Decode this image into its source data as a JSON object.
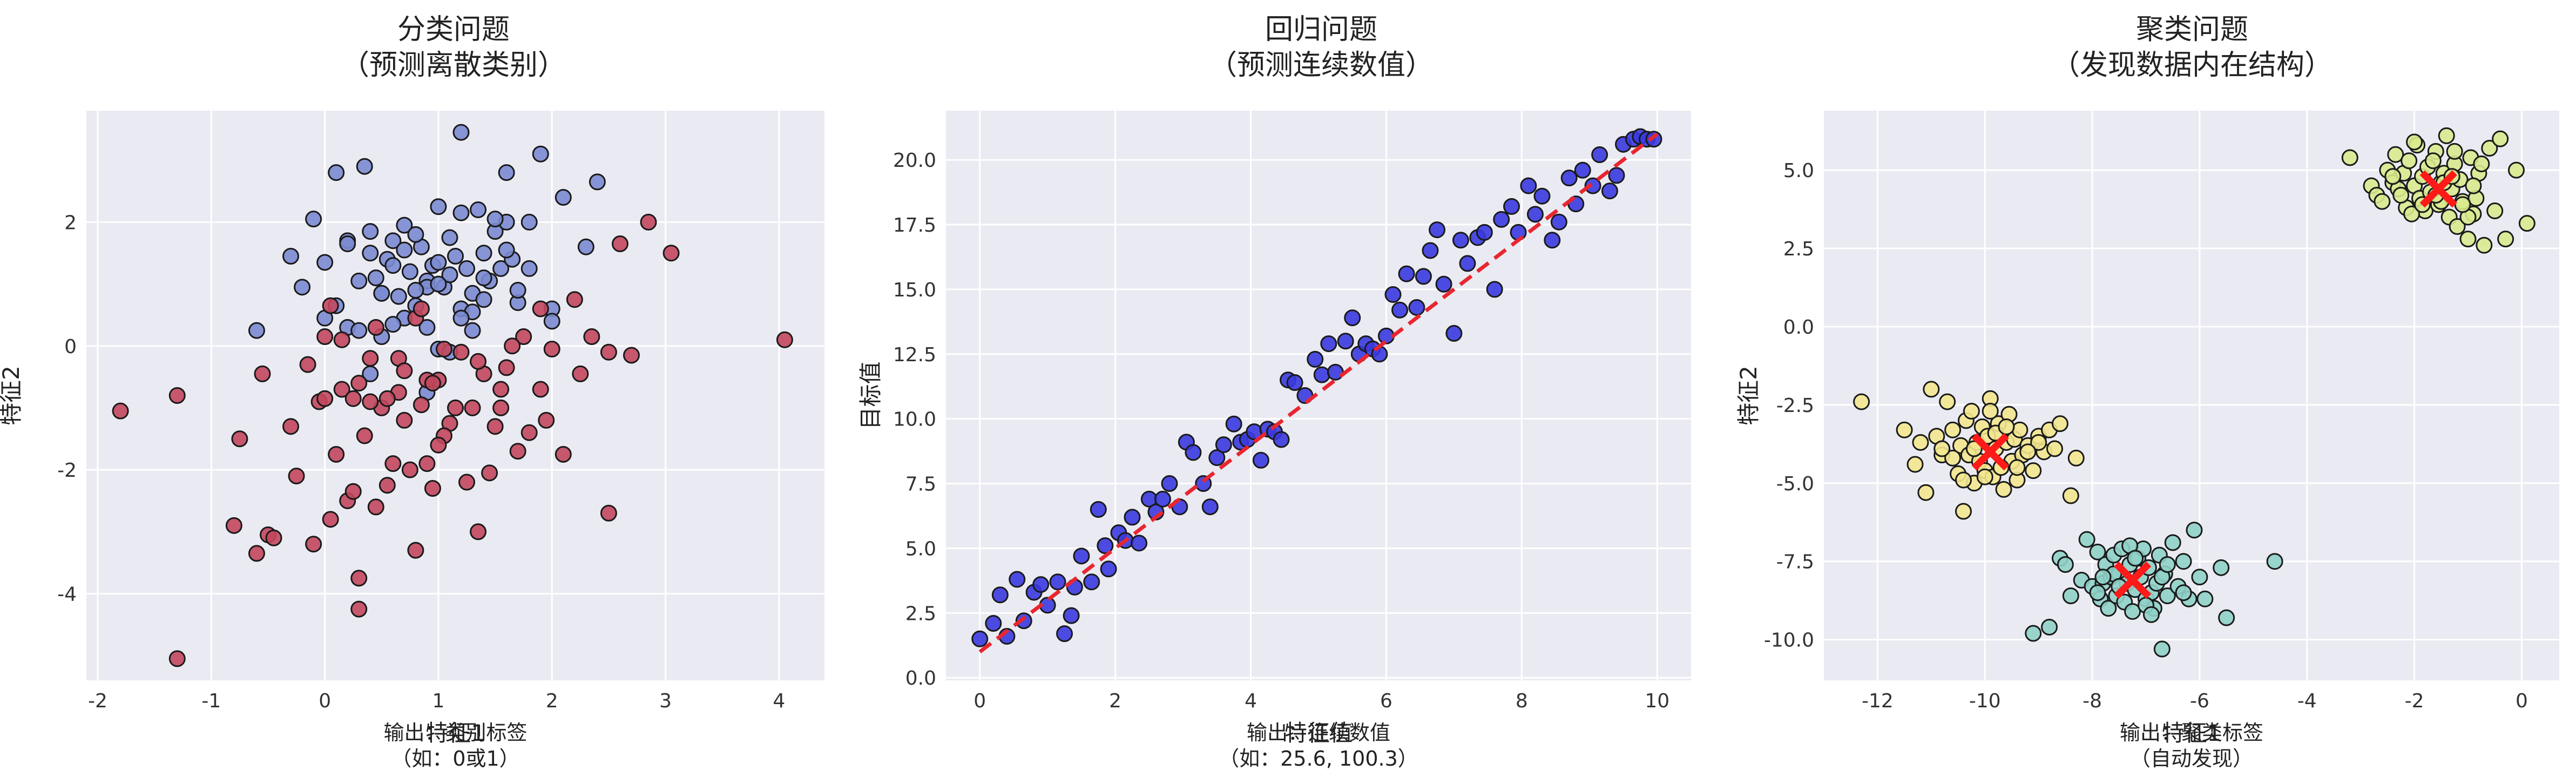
{
  "colors": {
    "panel_bg": "#eaeaf2",
    "grid": "#ffffff",
    "class_0": "#7b8bd1",
    "class_1": "#c2475d",
    "regression_points": "#3a3ae0",
    "regression_line": "#e8262f",
    "cluster_1": "#d8ea8e",
    "cluster_2": "#f3e78e",
    "cluster_3": "#8fd2c8",
    "centroid": "#ff1a1a"
  },
  "chart_data": [
    {
      "type": "scatter",
      "title_line1": "分类问题",
      "title_line2": "（预测离散类别）",
      "xlabel": "特征1",
      "ylabel": "特征2",
      "note_line1": "输出：类别标签",
      "note_line2": "（如：0或1）",
      "xlim": [
        -2.1,
        4.4
      ],
      "ylim": [
        -5.4,
        3.8
      ],
      "xticks": [
        -2,
        -1,
        0,
        1,
        2,
        3,
        4
      ],
      "yticks": [
        -4,
        -2,
        0,
        2
      ],
      "series": [
        {
          "color_key": "class_0",
          "x": [
            -0.6,
            -0.1,
            0.0,
            0.1,
            0.2,
            0.3,
            0.35,
            0.4,
            0.45,
            0.5,
            0.55,
            0.6,
            0.65,
            0.7,
            0.75,
            0.8,
            0.85,
            0.9,
            0.95,
            1.0,
            1.05,
            1.1,
            1.15,
            1.2,
            1.25,
            1.3,
            1.35,
            1.4,
            1.45,
            1.5,
            1.55,
            1.6,
            1.65,
            1.7,
            1.8,
            1.9,
            2.0,
            2.1,
            2.3,
            2.4,
            0.1,
            0.3,
            0.5,
            0.7,
            0.9,
            1.0,
            1.2,
            1.4,
            1.6,
            1.8,
            -0.3,
            -0.2,
            0.0,
            0.2,
            0.4,
            0.6,
            0.8,
            1.0,
            1.2,
            1.4,
            1.6,
            0.4,
            0.7,
            0.9,
            1.1,
            1.3,
            0.5,
            0.8,
            1.0,
            1.5,
            0.6,
            1.1,
            1.2,
            0.9,
            0.2,
            1.7,
            1.3,
            2.0
          ],
          "y": [
            0.25,
            2.05,
            1.35,
            2.8,
            0.3,
            1.05,
            2.9,
            1.85,
            1.1,
            0.85,
            1.4,
            1.7,
            0.8,
            1.55,
            1.2,
            0.65,
            1.6,
            1.05,
            1.3,
            2.25,
            0.95,
            1.75,
            1.45,
            3.45,
            1.25,
            0.85,
            2.2,
            1.5,
            1.05,
            1.85,
            1.25,
            2.0,
            1.4,
            0.7,
            2.0,
            3.1,
            0.6,
            2.4,
            1.6,
            2.65,
            0.65,
            0.25,
            0.15,
            0.45,
            0.95,
            1.35,
            0.6,
            1.1,
            2.8,
            1.25,
            1.45,
            0.95,
            0.45,
            1.7,
            -0.45,
            0.35,
            0.9,
            -0.05,
            2.15,
            0.75,
            1.55,
            1.5,
            1.95,
            0.3,
            1.15,
            0.55,
            0.85,
            1.8,
            1.0,
            2.05,
            1.3,
            -0.1,
            0.45,
            -0.75,
            1.65,
            0.9,
            0.25,
            0.4
          ]
        },
        {
          "color_key": "class_1",
          "x": [
            -1.8,
            -1.3,
            -1.3,
            -0.8,
            -0.75,
            -0.6,
            -0.55,
            -0.5,
            -0.45,
            -0.3,
            -0.25,
            -0.15,
            -0.05,
            0.0,
            0.05,
            0.1,
            0.15,
            0.2,
            0.25,
            0.3,
            0.3,
            0.35,
            0.4,
            0.45,
            0.5,
            0.55,
            0.6,
            0.65,
            0.7,
            0.75,
            0.8,
            0.85,
            0.9,
            0.95,
            1.0,
            1.05,
            1.1,
            1.2,
            1.3,
            1.35,
            1.4,
            1.45,
            1.5,
            1.55,
            1.6,
            1.7,
            1.75,
            1.8,
            1.9,
            1.95,
            2.0,
            2.1,
            2.2,
            2.25,
            2.35,
            2.5,
            2.6,
            2.7,
            2.85,
            3.05,
            4.05,
            0.05,
            0.3,
            0.65,
            0.9,
            1.15,
            1.35,
            0.0,
            0.55,
            0.95,
            1.25,
            1.65,
            0.25,
            0.8,
            1.05,
            1.55,
            0.45,
            0.7,
            1.9,
            2.5,
            0.15,
            1.0,
            -0.1,
            0.4,
            0.85
          ],
          "y": [
            -1.05,
            -0.8,
            -5.05,
            -2.9,
            -1.5,
            -3.35,
            -0.45,
            -3.05,
            -3.1,
            -1.3,
            -2.1,
            -0.3,
            -0.9,
            -0.85,
            -2.8,
            -1.75,
            -0.7,
            -2.5,
            -2.35,
            -3.75,
            -4.25,
            -1.45,
            -0.2,
            -2.6,
            -1.0,
            -2.25,
            -1.9,
            -0.75,
            -1.2,
            -2.0,
            -3.3,
            -0.95,
            -1.9,
            -2.3,
            -0.55,
            -0.05,
            -1.25,
            -0.1,
            -1.0,
            -3.0,
            -0.45,
            -2.05,
            -1.3,
            -0.7,
            -0.35,
            -1.7,
            0.15,
            -1.4,
            -0.7,
            -1.2,
            -0.05,
            -1.75,
            0.75,
            -0.45,
            0.15,
            -0.1,
            1.65,
            -0.15,
            2.0,
            1.5,
            0.1,
            0.65,
            -0.6,
            -0.2,
            -0.55,
            -1.0,
            -0.25,
            0.15,
            -0.85,
            -0.6,
            -2.2,
            0.0,
            -0.85,
            0.45,
            -1.45,
            -1.0,
            0.3,
            -0.4,
            0.6,
            -2.7,
            0.1,
            -1.6,
            -3.2,
            -0.9,
            0.6
          ]
        }
      ]
    },
    {
      "type": "scatter",
      "title_line1": "回归问题",
      "title_line2": "（预测连续数值）",
      "xlabel": "特征值",
      "ylabel": "目标值",
      "note_line1": "输出：连续数值",
      "note_line2": "（如：25.6, 100.3）",
      "xlim": [
        -0.5,
        10.5
      ],
      "ylim": [
        -0.1,
        21.9
      ],
      "xticks": [
        0,
        2,
        4,
        6,
        8,
        10
      ],
      "yticks": [
        0.0,
        2.5,
        5.0,
        7.5,
        10.0,
        12.5,
        15.0,
        17.5,
        20.0
      ],
      "yticklabels": [
        "0.0",
        "2.5",
        "5.0",
        "7.5",
        "10.0",
        "12.5",
        "15.0",
        "17.5",
        "20.0"
      ],
      "series": [
        {
          "color_key": "regression_points",
          "x": [
            0.0,
            0.2,
            0.3,
            0.4,
            0.55,
            0.65,
            0.8,
            0.9,
            1.0,
            1.15,
            1.25,
            1.35,
            1.4,
            1.5,
            1.65,
            1.75,
            1.85,
            1.9,
            2.05,
            2.15,
            2.25,
            2.35,
            2.5,
            2.6,
            2.7,
            2.8,
            2.95,
            3.05,
            3.15,
            3.3,
            3.4,
            3.5,
            3.6,
            3.75,
            3.85,
            3.95,
            4.05,
            4.15,
            4.25,
            4.35,
            4.45,
            4.55,
            4.65,
            4.8,
            4.95,
            5.05,
            5.15,
            5.25,
            5.4,
            5.5,
            5.6,
            5.7,
            5.8,
            5.9,
            6.0,
            6.1,
            6.2,
            6.3,
            6.45,
            6.55,
            6.65,
            6.75,
            6.85,
            7.0,
            7.1,
            7.2,
            7.35,
            7.45,
            7.6,
            7.7,
            7.85,
            7.95,
            8.1,
            8.2,
            8.3,
            8.45,
            8.55,
            8.7,
            8.8,
            8.9,
            9.05,
            9.15,
            9.3,
            9.4,
            9.5,
            9.65,
            9.75,
            9.85,
            9.95
          ],
          "y": [
            1.5,
            2.1,
            3.2,
            1.6,
            3.8,
            2.2,
            3.3,
            3.6,
            2.8,
            3.7,
            1.7,
            2.4,
            3.5,
            4.7,
            3.7,
            6.5,
            5.1,
            4.2,
            5.6,
            5.3,
            6.2,
            5.2,
            6.9,
            6.4,
            6.9,
            7.5,
            6.6,
            9.1,
            8.7,
            7.5,
            6.6,
            8.5,
            9.0,
            9.8,
            9.1,
            9.2,
            9.5,
            8.4,
            9.6,
            9.5,
            9.2,
            11.5,
            11.4,
            10.9,
            12.3,
            11.7,
            12.9,
            11.8,
            13.0,
            13.9,
            12.5,
            12.9,
            12.7,
            12.5,
            13.2,
            14.8,
            14.2,
            15.6,
            14.3,
            15.5,
            16.5,
            17.3,
            15.2,
            13.3,
            16.9,
            16.0,
            17.0,
            17.2,
            15.0,
            17.7,
            18.2,
            17.2,
            19.0,
            17.9,
            18.6,
            16.9,
            17.6,
            19.3,
            18.3,
            19.6,
            19.0,
            20.2,
            18.8,
            19.4,
            20.6,
            20.8,
            20.9,
            20.8,
            20.8
          ]
        }
      ],
      "line": {
        "color_key": "regression_line",
        "x": [
          0,
          10
        ],
        "y": [
          1.0,
          21.0
        ]
      }
    },
    {
      "type": "scatter",
      "title_line1": "聚类问题",
      "title_line2": "（发现数据内在结构）",
      "xlabel": "特征1",
      "ylabel": "特征2",
      "note_line1": "输出：聚类标签",
      "note_line2": "（自动发现）",
      "xlim": [
        -13.0,
        0.7
      ],
      "ylim": [
        -11.3,
        6.9
      ],
      "xticks": [
        -12,
        -10,
        -8,
        -6,
        -4,
        -2,
        0
      ],
      "yticks": [
        -10.0,
        -7.5,
        -5.0,
        -2.5,
        0.0,
        2.5,
        5.0
      ],
      "yticklabels": [
        "-10.0",
        "-7.5",
        "-5.0",
        "-2.5",
        "0.0",
        "2.5",
        "5.0"
      ],
      "series": [
        {
          "color_key": "cluster_1",
          "x": [
            -3.2,
            -2.8,
            -2.7,
            -2.6,
            -2.5,
            -2.4,
            -2.35,
            -2.3,
            -2.2,
            -2.15,
            -2.1,
            -2.0,
            -1.95,
            -1.9,
            -1.85,
            -1.8,
            -1.75,
            -1.7,
            -1.6,
            -1.55,
            -1.5,
            -1.45,
            -1.4,
            -1.35,
            -1.3,
            -1.25,
            -1.2,
            -1.15,
            -1.1,
            -1.0,
            -0.95,
            -0.9,
            -0.85,
            -0.8,
            -0.7,
            -0.6,
            -0.5,
            -0.4,
            -0.3,
            -0.1,
            0.1,
            -2.05,
            -1.65,
            -1.5,
            -1.25,
            -1.0,
            -2.25,
            -1.85,
            -0.75,
            -1.45,
            -2.0,
            -1.6,
            -1.3,
            -1.1,
            -2.4,
            -0.9
          ],
          "y": [
            5.4,
            4.5,
            4.2,
            4.0,
            5.0,
            4.6,
            5.5,
            4.4,
            4.9,
            3.8,
            5.3,
            4.5,
            5.8,
            4.1,
            4.8,
            3.7,
            5.1,
            4.3,
            5.6,
            3.9,
            4.6,
            4.9,
            6.1,
            3.5,
            4.4,
            5.2,
            3.2,
            4.7,
            4.0,
            2.8,
            5.4,
            3.6,
            4.1,
            4.9,
            2.6,
            5.7,
            3.7,
            6.0,
            2.8,
            5.0,
            3.3,
            3.6,
            5.3,
            4.0,
            5.6,
            3.5,
            4.2,
            3.9,
            5.2,
            4.6,
            5.9,
            4.2,
            4.8,
            3.9,
            4.8,
            4.5
          ]
        },
        {
          "color_key": "cluster_2",
          "x": [
            -12.3,
            -11.5,
            -11.3,
            -11.1,
            -11.0,
            -10.9,
            -10.8,
            -10.7,
            -10.6,
            -10.5,
            -10.45,
            -10.4,
            -10.35,
            -10.3,
            -10.25,
            -10.2,
            -10.15,
            -10.1,
            -10.05,
            -10.0,
            -9.95,
            -9.9,
            -9.85,
            -9.8,
            -9.75,
            -9.7,
            -9.65,
            -9.6,
            -9.55,
            -9.5,
            -9.45,
            -9.4,
            -9.35,
            -9.3,
            -9.2,
            -9.1,
            -9.0,
            -8.9,
            -8.8,
            -8.7,
            -8.6,
            -8.4,
            -8.3,
            -10.6,
            -10.2,
            -9.8,
            -9.4,
            -9.0,
            -10.8,
            -10.4,
            -9.9,
            -9.6,
            -9.2,
            -10.0,
            -11.2,
            -9.7
          ],
          "y": [
            -2.4,
            -3.3,
            -4.4,
            -5.3,
            -2.0,
            -3.5,
            -4.1,
            -2.4,
            -3.3,
            -4.7,
            -3.8,
            -5.9,
            -3.0,
            -4.1,
            -2.7,
            -5.0,
            -3.7,
            -4.3,
            -3.2,
            -4.6,
            -3.5,
            -2.3,
            -4.8,
            -3.9,
            -3.1,
            -4.5,
            -5.2,
            -3.7,
            -2.8,
            -4.3,
            -3.6,
            -4.9,
            -3.3,
            -4.1,
            -3.8,
            -4.6,
            -3.5,
            -4.0,
            -3.3,
            -3.9,
            -3.1,
            -5.4,
            -4.2,
            -4.2,
            -3.9,
            -3.4,
            -4.5,
            -3.7,
            -3.9,
            -4.9,
            -2.7,
            -3.2,
            -4.0,
            -4.8,
            -3.7,
            -4.5
          ]
        },
        {
          "color_key": "cluster_3",
          "x": [
            -9.1,
            -8.8,
            -8.6,
            -8.5,
            -8.4,
            -8.2,
            -8.1,
            -8.0,
            -7.9,
            -7.85,
            -7.8,
            -7.75,
            -7.7,
            -7.65,
            -7.6,
            -7.55,
            -7.5,
            -7.45,
            -7.4,
            -7.35,
            -7.3,
            -7.25,
            -7.2,
            -7.15,
            -7.1,
            -7.05,
            -7.0,
            -6.95,
            -6.9,
            -6.85,
            -6.8,
            -6.75,
            -6.7,
            -6.65,
            -6.6,
            -6.5,
            -6.4,
            -6.3,
            -6.2,
            -6.0,
            -5.9,
            -5.6,
            -5.5,
            -4.6,
            -7.9,
            -7.6,
            -7.3,
            -7.0,
            -6.7,
            -7.5,
            -7.2,
            -6.9,
            -6.6,
            -7.8,
            -6.3,
            -6.1
          ],
          "y": [
            -9.8,
            -9.6,
            -7.4,
            -7.6,
            -8.6,
            -8.1,
            -6.8,
            -8.3,
            -7.2,
            -8.7,
            -8.2,
            -7.6,
            -9.0,
            -8.0,
            -7.3,
            -8.6,
            -7.9,
            -7.1,
            -8.8,
            -8.2,
            -7.6,
            -9.1,
            -8.4,
            -7.4,
            -8.0,
            -7.1,
            -8.7,
            -7.7,
            -8.5,
            -9.0,
            -8.2,
            -7.3,
            -10.3,
            -7.9,
            -8.6,
            -6.9,
            -8.3,
            -7.5,
            -8.7,
            -8.0,
            -8.7,
            -7.7,
            -9.3,
            -7.5,
            -8.5,
            -7.9,
            -7.0,
            -8.9,
            -8.0,
            -8.3,
            -7.4,
            -9.2,
            -7.6,
            -8.0,
            -8.5,
            -6.5
          ]
        }
      ],
      "centroids": {
        "color_key": "centroid",
        "x": [
          -1.55,
          -9.9,
          -7.25
        ],
        "y": [
          4.4,
          -4.0,
          -8.1
        ]
      }
    }
  ]
}
